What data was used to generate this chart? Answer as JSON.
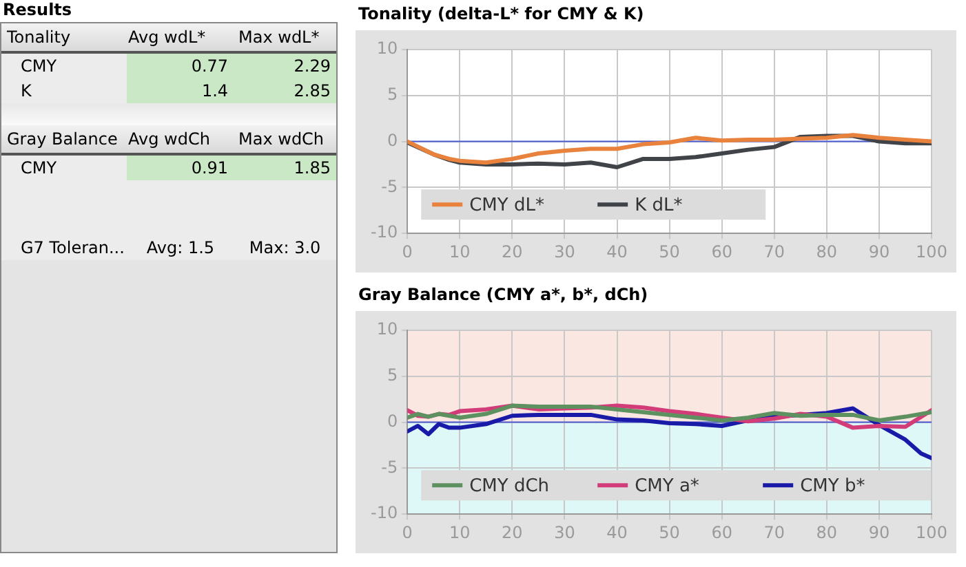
{
  "chart_data": [
    {
      "type": "other",
      "title": "Results",
      "annotations": [
        "Tonality",
        "Avg wdL*",
        "Max wdL*",
        "CMY",
        "0.77",
        "2.29",
        "K",
        "1.4",
        "2.85",
        "Gray Balance",
        "Avg wdCh",
        "Max wdCh",
        "CMY",
        "0.91",
        "1.85",
        "G7 Toleran...",
        "Avg: 1.5",
        "Max: 3.0"
      ]
    },
    {
      "type": "line",
      "title": "Tonality (delta-L* for CMY & K)",
      "xlim": [
        0,
        100
      ],
      "xticks": [
        0,
        10,
        20,
        30,
        40,
        50,
        60,
        70,
        80,
        90,
        100
      ],
      "ylim": [
        -10,
        10
      ],
      "yticks": [
        -10,
        -5,
        0,
        5,
        10
      ],
      "grid": true,
      "legend": "bottom left",
      "marker": "none",
      "x": [
        0,
        5,
        8,
        10,
        15,
        20,
        25,
        30,
        35,
        40,
        45,
        50,
        55,
        60,
        65,
        70,
        75,
        80,
        85,
        90,
        95,
        100
      ],
      "ref_lines": [
        {
          "axis": "y",
          "value": 0,
          "color": "#4a5ad0"
        }
      ],
      "series": [
        {
          "name": "CMY dL*",
          "color": "#e8823c",
          "values": [
            0,
            -1.4,
            -1.9,
            -2.1,
            -2.3,
            -1.9,
            -1.3,
            -1.0,
            -0.8,
            -0.8,
            -0.3,
            -0.1,
            0.4,
            0.1,
            0.2,
            0.2,
            0.3,
            0.4,
            0.7,
            0.4,
            0.2,
            0
          ]
        },
        {
          "name": "K dL*",
          "color": "#404448",
          "values": [
            -0.1,
            -1.4,
            -2.0,
            -2.3,
            -2.5,
            -2.5,
            -2.4,
            -2.5,
            -2.3,
            -2.8,
            -1.9,
            -1.9,
            -1.7,
            -1.3,
            -0.9,
            -0.6,
            0.5,
            0.6,
            0.6,
            0,
            -0.2,
            -0.2
          ]
        }
      ]
    },
    {
      "type": "line",
      "title": "Gray Balance (CMY a*, b*, dCh)",
      "xlim": [
        0,
        100
      ],
      "xticks": [
        0,
        10,
        20,
        30,
        40,
        50,
        60,
        70,
        80,
        90,
        100
      ],
      "ylim": [
        -10,
        10
      ],
      "yticks": [
        -10,
        -5,
        0,
        5,
        10
      ],
      "grid": true,
      "legend": "bottom left",
      "marker": "none",
      "ref_lines": [
        {
          "axis": "y",
          "value": 0,
          "color": "#4a5ad0"
        }
      ],
      "bands": [
        {
          "axis": "y",
          "from": 0,
          "to": 10,
          "color": "#fbe7e1"
        },
        {
          "axis": "y",
          "from": -10,
          "to": 0,
          "color": "#def7f7"
        }
      ],
      "series": [
        {
          "name": "CMY dCh",
          "color": "#5e9160",
          "x": [
            0,
            2,
            4,
            6,
            8,
            10,
            15,
            20,
            25,
            30,
            35,
            40,
            45,
            50,
            55,
            60,
            65,
            70,
            75,
            80,
            85,
            90,
            95,
            100
          ],
          "values": [
            0.5,
            0.9,
            0.6,
            0.9,
            0.7,
            0.5,
            0.9,
            1.8,
            1.7,
            1.7,
            1.7,
            1.4,
            1.1,
            0.8,
            0.5,
            0.2,
            0.5,
            1.0,
            0.7,
            0.8,
            0.8,
            0.2,
            0.6,
            1.1
          ]
        },
        {
          "name": "CMY a*",
          "color": "#d23c78",
          "x": [
            0,
            2,
            4,
            6,
            8,
            10,
            15,
            20,
            25,
            30,
            35,
            40,
            45,
            50,
            55,
            60,
            65,
            70,
            75,
            80,
            85,
            90,
            95,
            100
          ],
          "values": [
            1.3,
            0.7,
            0.6,
            0.9,
            0.8,
            1.2,
            1.4,
            1.8,
            1.4,
            1.5,
            1.6,
            1.8,
            1.6,
            1.2,
            0.9,
            0.5,
            0.1,
            0.4,
            0.9,
            0.6,
            -0.6,
            -0.4,
            -0.5,
            1.3
          ]
        },
        {
          "name": "CMY b*",
          "color": "#1a1aa8",
          "x": [
            0,
            2,
            4,
            6,
            8,
            10,
            15,
            20,
            25,
            30,
            35,
            40,
            45,
            50,
            55,
            60,
            65,
            70,
            75,
            80,
            85,
            90,
            95,
            98,
            100
          ],
          "values": [
            -1.0,
            -0.4,
            -1.3,
            -0.2,
            -0.6,
            -0.6,
            -0.2,
            0.7,
            0.8,
            0.8,
            0.8,
            0.3,
            0.2,
            -0.1,
            -0.2,
            -0.4,
            0.2,
            0.6,
            0.8,
            1.0,
            1.5,
            -0.3,
            -1.9,
            -3.4,
            -3.9
          ]
        }
      ]
    }
  ]
}
